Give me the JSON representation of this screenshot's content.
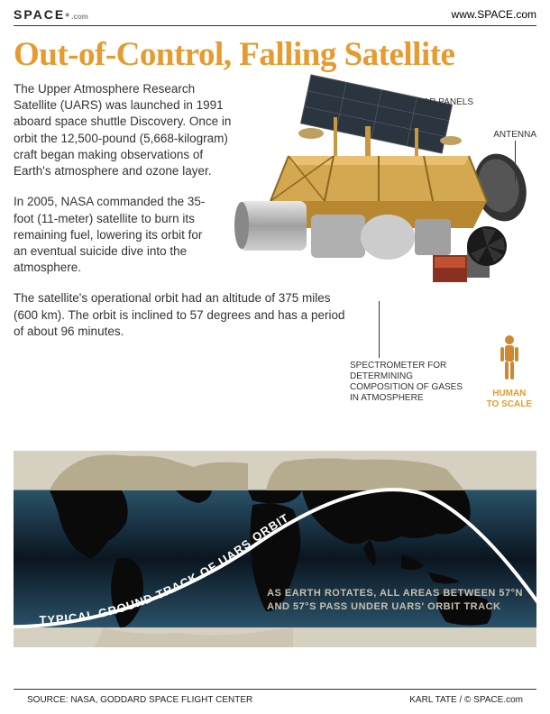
{
  "header": {
    "logo_main": "SPACE",
    "logo_suffix": ".com",
    "url": "www.SPACE.com"
  },
  "title": "Out-of-Control, Falling Satellite",
  "paragraphs": {
    "p1": "The Upper Atmosphere Research Satellite (UARS) was launched in 1991 aboard space shuttle Discovery. Once in orbit the 12,500-pound (5,668-kilogram) craft began making observations of Earth's atmosphere and ozone layer.",
    "p2": "In 2005, NASA commanded the 35-foot (11-meter) satellite to burn its remaining fuel, lowering its orbit for an eventual suicide dive into the atmosphere.",
    "p3": "The satellite's operational orbit had an altitude of 375 miles (600 km). The orbit is inclined to 57 degrees and has a period of about 96 minutes."
  },
  "callouts": {
    "solar_panels": "SOLAR PANELS",
    "antenna": "ANTENNA",
    "spectrometer": "SPECTROMETER FOR DETERMINING COMPOSITION OF GASES IN ATMOSPHERE",
    "human_scale": "HUMAN TO SCALE"
  },
  "map": {
    "orbit_label": "TYPICAL GROUND TRACK OF UARS ORBIT",
    "caption_line1": "AS EARTH ROTATES, ALL AREAS BETWEEN 57°N",
    "caption_line2": "AND 57°S PASS UNDER UARS' ORBIT TRACK"
  },
  "footer": {
    "source": "SOURCE: NASA, GODDARD SPACE FLIGHT CENTER",
    "credit": "KARL TATE / © SPACE.com"
  },
  "colors": {
    "accent_orange": "#e79a2e",
    "text": "#333333",
    "satellite_gold": "#c89840",
    "satellite_foil": "#d4a850",
    "satellite_silver": "#b0b0b0",
    "solar_panel": "#2a3540",
    "map_land_light": "#b5ac90",
    "map_land_dark": "#0a0a0a",
    "map_ocean_top": "#2a5268",
    "map_ocean_mid": "#0a1520",
    "map_bg": "#d5d0c0",
    "orbit_line": "#ffffff",
    "human_fill": "#d08830"
  }
}
